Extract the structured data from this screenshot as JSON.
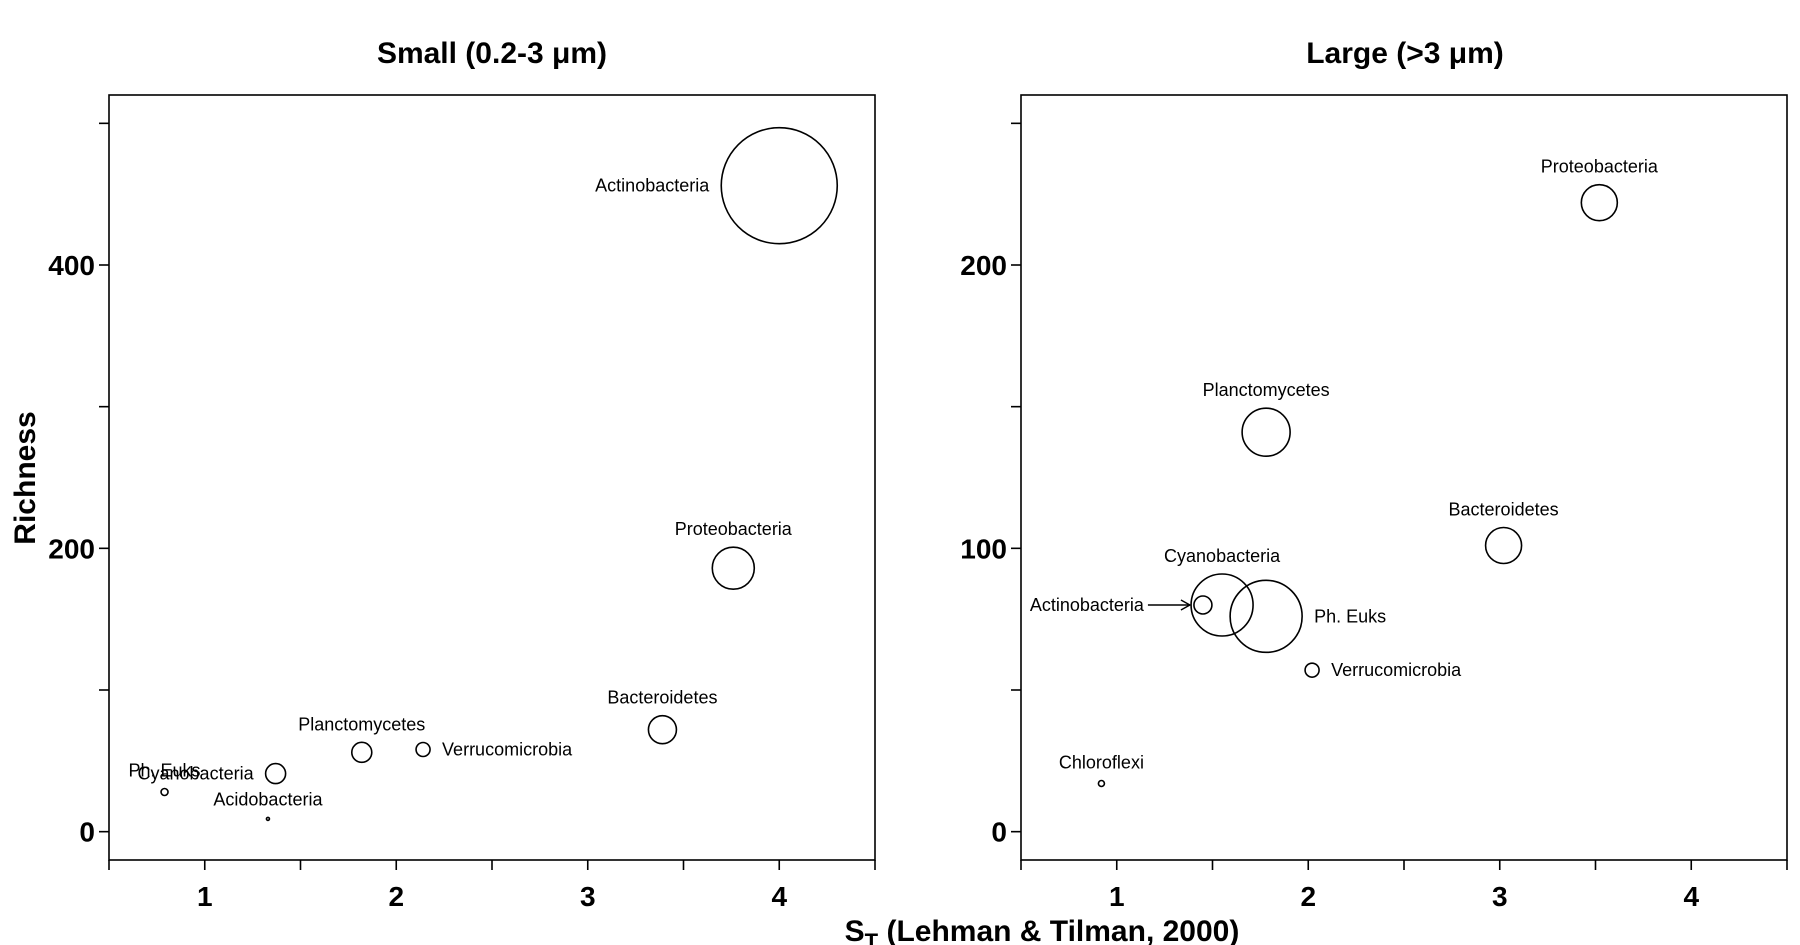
{
  "chart_data": [
    {
      "type": "scatter",
      "title": "Small (0.2-3 μm)",
      "xlabel_main": "S",
      "xlabel_sub": "T",
      "xlabel_rest": " (Lehman & Tilman, 2000)",
      "ylabel": "Richness",
      "xlim": [
        0.5,
        4.5
      ],
      "ylim": [
        -20,
        520
      ],
      "xticks": [
        0.5,
        1,
        1.5,
        2,
        2.5,
        3,
        3.5,
        4,
        4.5
      ],
      "xtick_labels": {
        "1": "1",
        "2": "2",
        "3": "3",
        "4": "4"
      },
      "yticks": [
        0,
        100,
        200,
        300,
        400,
        500
      ],
      "ytick_labels": {
        "0": "0",
        "200": "200",
        "400": "400"
      },
      "series": [
        {
          "label": "Actinobacteria",
          "x": 4.0,
          "y": 456,
          "r": 58,
          "label_pos": "left"
        },
        {
          "label": "Proteobacteria",
          "x": 3.76,
          "y": 186,
          "r": 21,
          "label_pos": "top"
        },
        {
          "label": "Bacteroidetes",
          "x": 3.39,
          "y": 72,
          "r": 14,
          "label_pos": "top"
        },
        {
          "label": "Verrucomicrobia",
          "x": 2.14,
          "y": 58,
          "r": 7,
          "label_pos": "right"
        },
        {
          "label": "Planctomycetes",
          "x": 1.82,
          "y": 56,
          "r": 10,
          "label_pos": "top"
        },
        {
          "label": "Cyanobacteria",
          "x": 1.37,
          "y": 41,
          "r": 10,
          "label_pos": "left"
        },
        {
          "label": "Ph. Euks",
          "x": 0.79,
          "y": 28,
          "r": 3.5,
          "label_pos": "top"
        },
        {
          "label": "Acidobacteria",
          "x": 1.33,
          "y": 9,
          "r": 1.5,
          "label_pos": "top"
        }
      ]
    },
    {
      "type": "scatter",
      "title": "Large (>3 μm)",
      "xlim": [
        0.5,
        4.5
      ],
      "ylim": [
        -10,
        260
      ],
      "xticks": [
        0.5,
        1,
        1.5,
        2,
        2.5,
        3,
        3.5,
        4,
        4.5
      ],
      "xtick_labels": {
        "1": "1",
        "2": "2",
        "3": "3",
        "4": "4"
      },
      "yticks": [
        0,
        50,
        100,
        150,
        200,
        250
      ],
      "ytick_labels": {
        "0": "0",
        "100": "100",
        "200": "200"
      },
      "series": [
        {
          "label": "Proteobacteria",
          "x": 3.52,
          "y": 222,
          "r": 18,
          "label_pos": "top"
        },
        {
          "label": "Planctomycetes",
          "x": 1.78,
          "y": 141,
          "r": 24,
          "label_pos": "top"
        },
        {
          "label": "Bacteroidetes",
          "x": 3.02,
          "y": 101,
          "r": 18,
          "label_pos": "top"
        },
        {
          "label": "Cyanobacteria",
          "x": 1.55,
          "y": 80,
          "r": 31,
          "label_pos": "top"
        },
        {
          "label": "Ph. Euks",
          "x": 1.78,
          "y": 76,
          "r": 36,
          "label_pos": "right"
        },
        {
          "label": "Actinobacteria",
          "x": 1.45,
          "y": 80,
          "r": 9,
          "label_pos": "left-arrow"
        },
        {
          "label": "Verrucomicrobia",
          "x": 2.02,
          "y": 57,
          "r": 7,
          "label_pos": "right"
        },
        {
          "label": "Chloroflexi",
          "x": 0.92,
          "y": 17,
          "r": 3,
          "label_pos": "top"
        }
      ]
    }
  ]
}
